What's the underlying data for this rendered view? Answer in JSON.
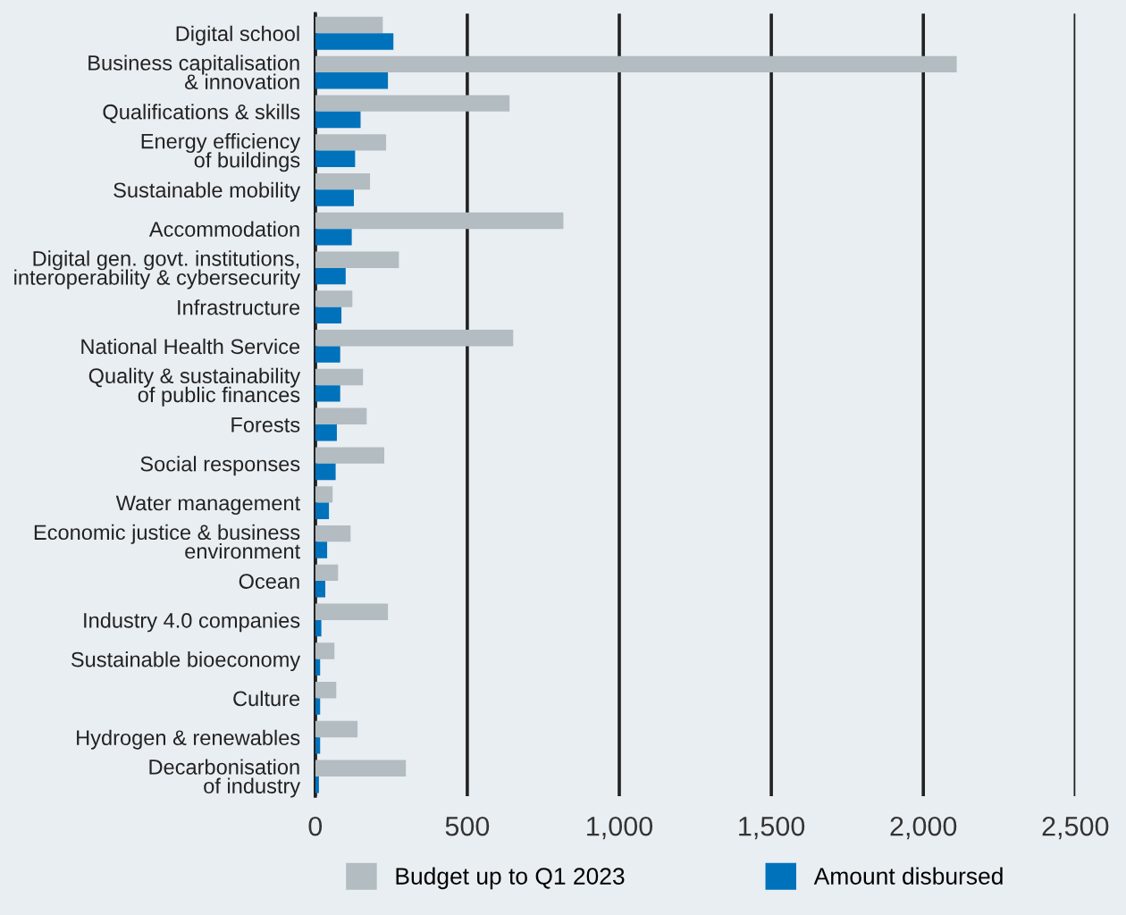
{
  "chart_data": {
    "type": "bar",
    "orientation": "horizontal",
    "categories": [
      "Digital school",
      "Business capitalisation\n& innovation",
      "Qualifications & skills",
      "Energy efficiency\nof buildings",
      "Sustainable mobility",
      "Accommodation",
      "Digital gen. govt. institutions,\ninteroperability & cybersecurity",
      "Infrastructure",
      "National Health Service",
      "Quality & sustainability\nof public finances",
      "Forests",
      "Social responses",
      "Water management",
      "Economic justice & business\nenvironment",
      "Ocean",
      "Industry 4.0 companies",
      "Sustainable bioeconomy",
      "Culture",
      "Hydrogen & renewables",
      "Decarbonisation\nof industry"
    ],
    "series": [
      {
        "name": "Budget up to Q1 2023",
        "color": "#b3bcc0",
        "values": [
          222,
          2110,
          639,
          233,
          180,
          816,
          275,
          122,
          651,
          157,
          169,
          227,
          57,
          116,
          75,
          239,
          63,
          69,
          139,
          298
        ]
      },
      {
        "name": "Amount disbursed",
        "color": "#0072bb",
        "values": [
          257,
          239,
          149,
          131,
          127,
          120,
          100,
          86,
          82,
          82,
          71,
          67,
          45,
          39,
          33,
          20,
          16,
          16,
          16,
          12
        ]
      }
    ],
    "xlim": [
      0,
      2500
    ],
    "xticks": [
      0,
      500,
      {
        "value": 1000,
        "label": "1,000"
      },
      {
        "value": 1500,
        "label": "1,500"
      },
      {
        "value": 2000,
        "label": "2,000"
      },
      {
        "value": 2500,
        "label": "2,500"
      }
    ],
    "grid": "x",
    "legend": "bottom"
  }
}
